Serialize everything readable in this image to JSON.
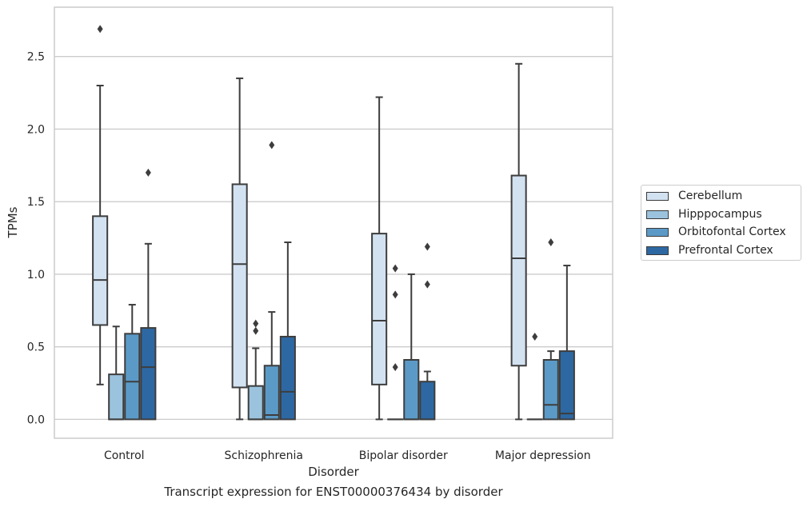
{
  "chart_data": {
    "type": "box",
    "title": "",
    "caption": "Transcript expression for ENST00000376434 by disorder",
    "xlabel": "Disorder",
    "ylabel": "TPMs",
    "ylim": [
      -0.13,
      2.84
    ],
    "yticks": [
      "0.0",
      "0.5",
      "1.0",
      "1.5",
      "2.0",
      "2.5"
    ],
    "grid": "horizontal",
    "legend_position": "right",
    "categories": [
      "Control",
      "Schizophrenia",
      "Bipolar disorder",
      "Major depression"
    ],
    "series": [
      {
        "name": "Cerebellum",
        "color": "#d3e2f1",
        "boxes": [
          {
            "min": 0.24,
            "q1": 0.65,
            "median": 0.96,
            "q3": 1.4,
            "max": 2.3,
            "outliers": [
              2.69
            ]
          },
          {
            "min": 0.0,
            "q1": 0.22,
            "median": 1.07,
            "q3": 1.62,
            "max": 2.35,
            "outliers": []
          },
          {
            "min": 0.0,
            "q1": 0.24,
            "median": 0.68,
            "q3": 1.28,
            "max": 2.22,
            "outliers": []
          },
          {
            "min": 0.0,
            "q1": 0.37,
            "median": 1.11,
            "q3": 1.68,
            "max": 2.45,
            "outliers": []
          }
        ]
      },
      {
        "name": "Hipppocampus",
        "color": "#9bc3dd",
        "boxes": [
          {
            "min": 0.0,
            "q1": 0.0,
            "median": 0.0,
            "q3": 0.31,
            "max": 0.64,
            "outliers": []
          },
          {
            "min": 0.0,
            "q1": 0.0,
            "median": 0.0,
            "q3": 0.23,
            "max": 0.49,
            "outliers": [
              0.61,
              0.66
            ]
          },
          {
            "min": 0.0,
            "q1": 0.0,
            "median": 0.0,
            "q3": 0.0,
            "max": 0.0,
            "outliers": [
              0.36,
              0.86,
              1.04
            ]
          },
          {
            "min": 0.0,
            "q1": 0.0,
            "median": 0.0,
            "q3": 0.0,
            "max": 0.0,
            "outliers": [
              0.57
            ]
          }
        ]
      },
      {
        "name": "Orbitofontal Cortex",
        "color": "#5b9ac7",
        "boxes": [
          {
            "min": 0.0,
            "q1": 0.0,
            "median": 0.26,
            "q3": 0.59,
            "max": 0.79,
            "outliers": []
          },
          {
            "min": 0.0,
            "q1": 0.0,
            "median": 0.03,
            "q3": 0.37,
            "max": 0.74,
            "outliers": [
              1.89
            ]
          },
          {
            "min": 0.0,
            "q1": 0.0,
            "median": 0.0,
            "q3": 0.41,
            "max": 1.0,
            "outliers": []
          },
          {
            "min": 0.0,
            "q1": 0.0,
            "median": 0.1,
            "q3": 0.41,
            "max": 0.47,
            "outliers": [
              1.22
            ]
          }
        ]
      },
      {
        "name": "Prefrontal Cortex",
        "color": "#2d68a3",
        "boxes": [
          {
            "min": 0.0,
            "q1": 0.0,
            "median": 0.36,
            "q3": 0.63,
            "max": 1.21,
            "outliers": [
              1.7
            ]
          },
          {
            "min": 0.0,
            "q1": 0.0,
            "median": 0.19,
            "q3": 0.57,
            "max": 1.22,
            "outliers": []
          },
          {
            "min": 0.0,
            "q1": 0.0,
            "median": 0.0,
            "q3": 0.26,
            "max": 0.33,
            "outliers": [
              0.93,
              1.19
            ]
          },
          {
            "min": 0.0,
            "q1": 0.0,
            "median": 0.04,
            "q3": 0.47,
            "max": 1.06,
            "outliers": []
          }
        ]
      }
    ]
  }
}
